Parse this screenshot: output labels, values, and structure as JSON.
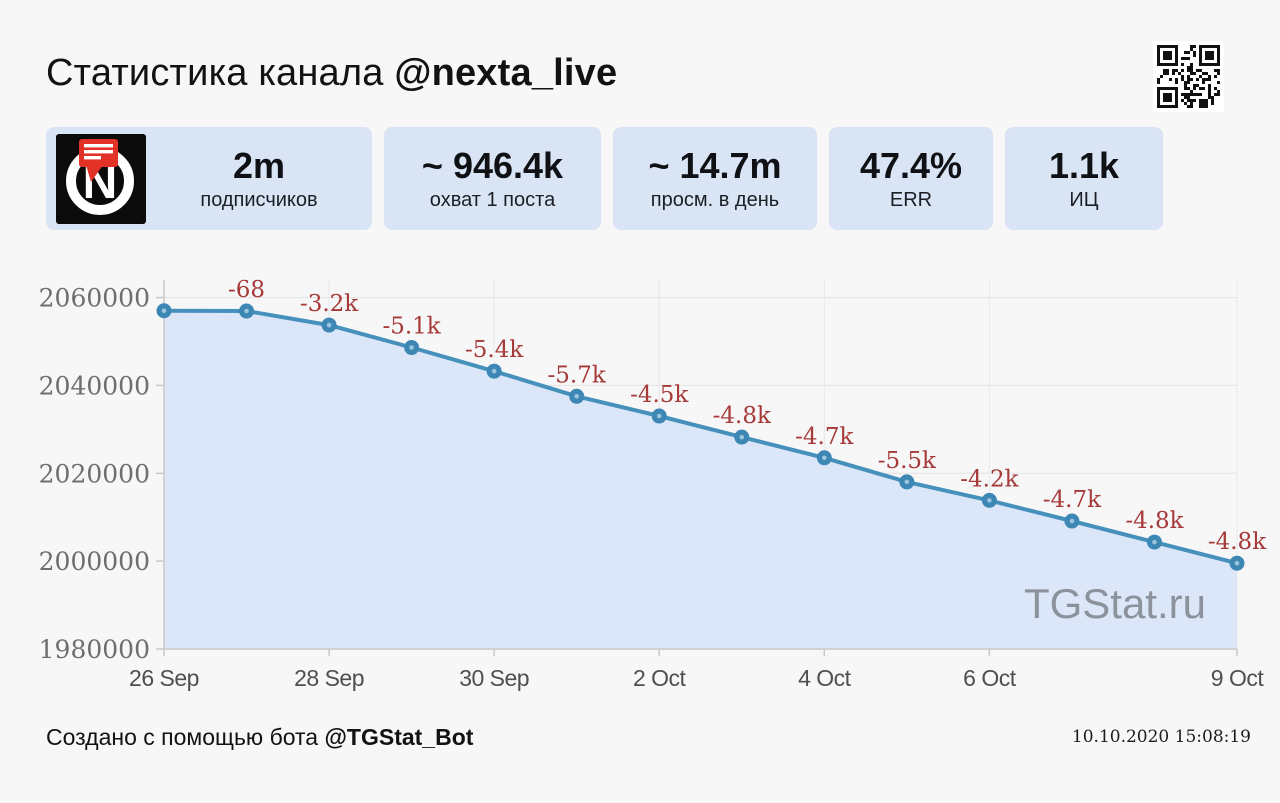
{
  "header": {
    "title_prefix": "Статистика канала ",
    "channel": "@nexta_live"
  },
  "logo": {
    "channel_initial": "N"
  },
  "stats_cards": [
    {
      "value": "2m",
      "label": "подписчиков"
    },
    {
      "value": "~ 946.4k",
      "label": "охват 1 поста"
    },
    {
      "value": "~ 14.7m",
      "label": "просм. в день"
    },
    {
      "value": "47.4%",
      "label": "ERR"
    },
    {
      "value": "1.1k",
      "label": "ИЦ"
    }
  ],
  "chart_data": {
    "type": "area",
    "title": "",
    "xlabel": "",
    "ylabel": "",
    "x": [
      "26 Sep",
      "27 Sep",
      "28 Sep",
      "29 Sep",
      "30 Sep",
      "1 Oct",
      "2 Oct",
      "3 Oct",
      "4 Oct",
      "5 Oct",
      "6 Oct",
      "7 Oct",
      "8 Oct",
      "9 Oct"
    ],
    "values": [
      2057000,
      2056932,
      2053732,
      2048632,
      2043232,
      2037532,
      2033032,
      2028232,
      2023532,
      2018032,
      2013832,
      2009132,
      2004332,
      1999532
    ],
    "point_labels": [
      "",
      "-68",
      "-3.2k",
      "-5.1k",
      "-5.4k",
      "-5.7k",
      "-4.5k",
      "-4.8k",
      "-4.7k",
      "-5.5k",
      "-4.2k",
      "-4.7k",
      "-4.8k",
      "-4.8k"
    ],
    "x_tick_indices": [
      0,
      2,
      4,
      6,
      8,
      10,
      13
    ],
    "x_tick_labels": [
      "26 Sep",
      "28 Sep",
      "30 Sep",
      "2 Oct",
      "4 Oct",
      "6 Oct",
      "9 Oct"
    ],
    "y_ticks": [
      1980000,
      2000000,
      2020000,
      2040000,
      2060000
    ],
    "ylim": [
      1980000,
      2064000
    ],
    "grid": true,
    "legend": false,
    "watermark": "TGStat.ru",
    "colors": {
      "line": "#4690bc",
      "marker": "#3d87b5",
      "marker_dot": "#9cc4dc",
      "fill": "#dbe7f9",
      "label": "#a63939",
      "axis": "#c9c9c9",
      "gridline": "#e3e3e3"
    }
  },
  "footer": {
    "credit_prefix": "Создано с помощью бота ",
    "credit_bot": "@TGStat_Bot",
    "timestamp": "10.10.2020 15:08:19"
  }
}
